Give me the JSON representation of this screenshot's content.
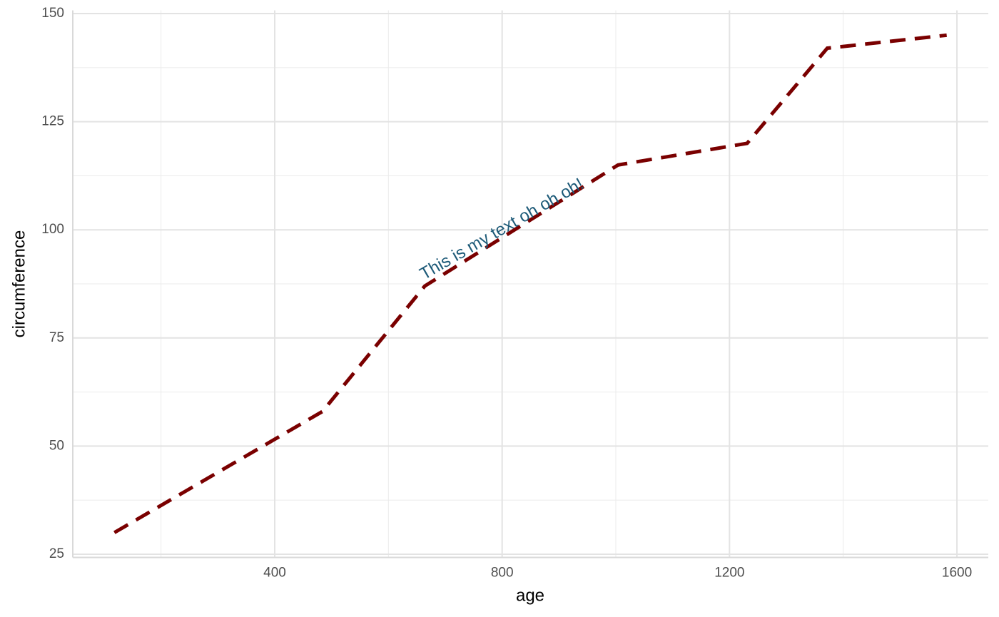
{
  "chart_data": {
    "type": "line",
    "x_label": "age",
    "y_label": "circumference",
    "x": [
      118,
      484,
      664,
      1004,
      1231,
      1372,
      1582
    ],
    "values": [
      30,
      58,
      87,
      115,
      120,
      142,
      145
    ],
    "color": "#7a0000",
    "dashed": true,
    "xlim": [
      44.8,
      1655.2
    ],
    "ylim": [
      24.25,
      150.75
    ],
    "xticks": [
      400,
      800,
      1200,
      1600
    ],
    "yticks": [
      25,
      50,
      75,
      100,
      125,
      150
    ],
    "x_minor_ticks": [
      200,
      600,
      1000,
      1400
    ],
    "y_minor_ticks": [
      37.5,
      62.5,
      87.5,
      112.5,
      137.5
    ],
    "grid": true,
    "annotation": {
      "text": "This is my text oh oh oh!",
      "x": 800,
      "y": 100,
      "angle": 30,
      "color": "#1d5a78"
    }
  }
}
